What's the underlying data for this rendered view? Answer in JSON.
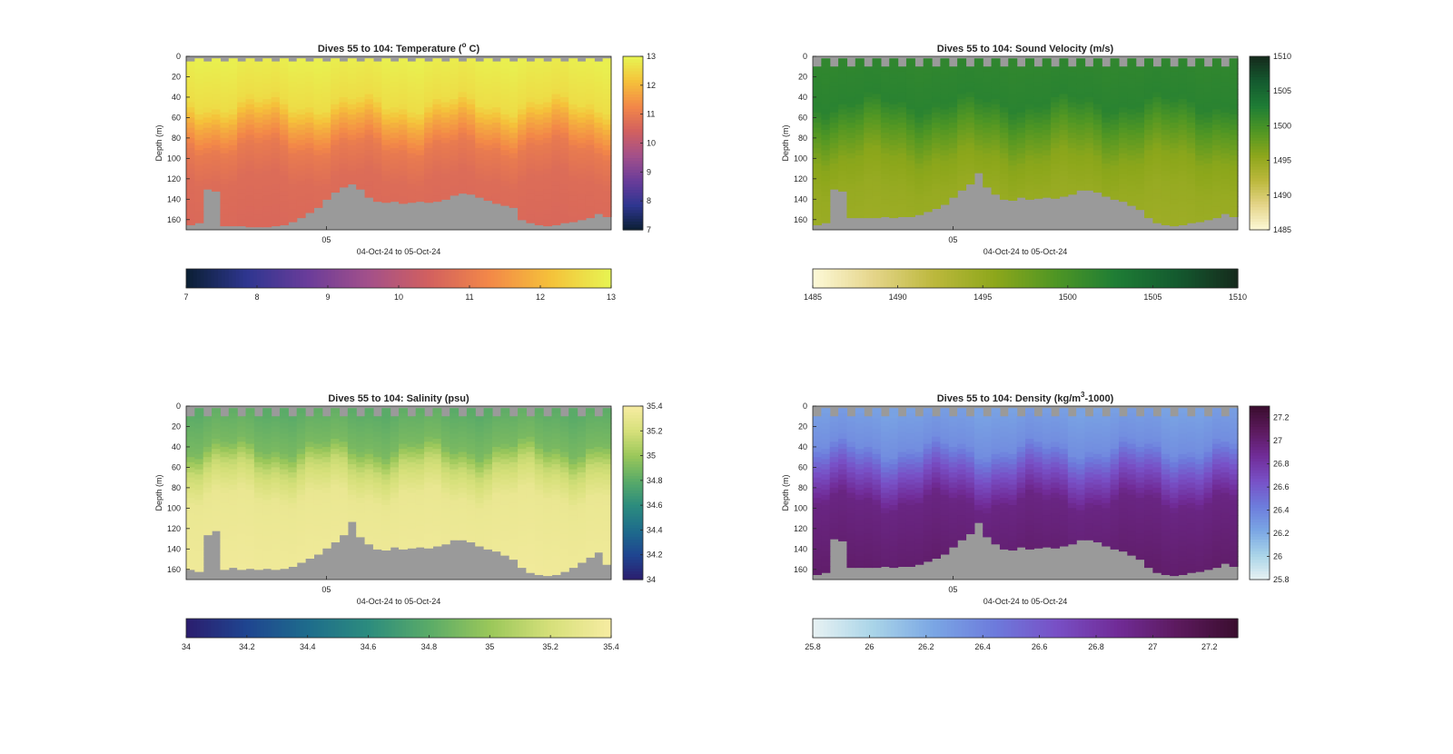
{
  "colors": {
    "land": "#9a9a9a",
    "axis": "#262626",
    "background": "#ffffff"
  },
  "chart_data": [
    {
      "type": "heatmap",
      "id": "temperature",
      "title": "Dives 55 to 104: Temperature (°C)",
      "title_parts": [
        "Dives 55 to 104: Temperature (",
        "o",
        " C)"
      ],
      "ylabel": "Depth (m)",
      "xlabel": "04-Oct-24 to 05-Oct-24",
      "x_tick_labels": [
        "05"
      ],
      "x_tick_dive": 16.5,
      "ylim": [
        170,
        0
      ],
      "y_ticks": [
        0,
        20,
        40,
        60,
        80,
        100,
        120,
        140,
        160
      ],
      "dives": 50,
      "colorbar_range": [
        7,
        13
      ],
      "colorbar_ticks": [
        7,
        8,
        9,
        10,
        11,
        12,
        13
      ],
      "side_colorbar_ticks": [
        7,
        8,
        9,
        10,
        11,
        12,
        13
      ],
      "colormap": [
        "#0b1f33",
        "#2e3690",
        "#6a3c9a",
        "#a3508a",
        "#d2605f",
        "#f38848",
        "#f5c13a",
        "#e7f552"
      ],
      "surface_gap_m": 5,
      "layers": [
        {
          "depth": 0,
          "value": 12.9
        },
        {
          "depth": 45,
          "value": 12.6
        },
        {
          "depth": 65,
          "value": 11.8
        },
        {
          "depth": 90,
          "value": 11.0
        },
        {
          "depth": 120,
          "value": 10.7
        },
        {
          "depth": 170,
          "value": 10.6
        }
      ],
      "bottom_depth_m": [
        165,
        163,
        130,
        132,
        166,
        166,
        166,
        167,
        167,
        167,
        166,
        165,
        162,
        158,
        153,
        148,
        140,
        133,
        128,
        125,
        130,
        138,
        142,
        143,
        142,
        144,
        143,
        142,
        143,
        142,
        140,
        136,
        134,
        135,
        138,
        141,
        144,
        146,
        148,
        160,
        163,
        165,
        166,
        165,
        163,
        162,
        160,
        158,
        154,
        157
      ]
    },
    {
      "type": "heatmap",
      "id": "sound_velocity",
      "title": "Dives 55 to 104: Sound Velocity (m/s)",
      "title_parts": [
        "Dives 55 to 104: Sound Velocity (m/s)"
      ],
      "ylabel": "Depth (m)",
      "xlabel": "04-Oct-24 to 05-Oct-24",
      "x_tick_labels": [
        "05"
      ],
      "x_tick_dive": 16.5,
      "ylim": [
        170,
        0
      ],
      "y_ticks": [
        0,
        20,
        40,
        60,
        80,
        100,
        120,
        140,
        160
      ],
      "dives": 50,
      "colorbar_range": [
        1485,
        1510
      ],
      "colorbar_ticks": [
        1485,
        1490,
        1495,
        1500,
        1505,
        1510
      ],
      "side_colorbar_ticks": [
        1485,
        1490,
        1495,
        1500,
        1505,
        1510
      ],
      "colormap": [
        "#fdf9d8",
        "#e5d58a",
        "#bcb83c",
        "#8da71b",
        "#4f9624",
        "#1e7d35",
        "#145a2f",
        "#152a1c"
      ],
      "surface_gap_m": 10,
      "layers": [
        {
          "depth": 0,
          "value": 1501.5
        },
        {
          "depth": 45,
          "value": 1502.0
        },
        {
          "depth": 70,
          "value": 1499.0
        },
        {
          "depth": 100,
          "value": 1496.0
        },
        {
          "depth": 130,
          "value": 1495.0
        },
        {
          "depth": 170,
          "value": 1494.5
        }
      ],
      "bottom_depth_m": [
        165,
        163,
        130,
        132,
        158,
        158,
        158,
        158,
        157,
        158,
        157,
        157,
        155,
        152,
        149,
        145,
        138,
        131,
        125,
        114,
        128,
        135,
        140,
        141,
        138,
        140,
        139,
        138,
        139,
        137,
        135,
        131,
        131,
        133,
        137,
        140,
        142,
        146,
        150,
        158,
        163,
        165,
        166,
        165,
        163,
        162,
        160,
        158,
        154,
        157
      ]
    },
    {
      "type": "heatmap",
      "id": "salinity",
      "title": "Dives 55 to 104: Salinity (psu)",
      "title_parts": [
        "Dives 55 to 104: Salinity (psu)"
      ],
      "ylabel": "Depth (m)",
      "xlabel": "04-Oct-24 to 05-Oct-24",
      "x_tick_labels": [
        "05"
      ],
      "x_tick_dive": 16.5,
      "ylim": [
        170,
        0
      ],
      "y_ticks": [
        0,
        20,
        40,
        60,
        80,
        100,
        120,
        140,
        160
      ],
      "dives": 50,
      "colorbar_range": [
        34,
        35.4
      ],
      "colorbar_ticks": [
        34,
        34.2,
        34.4,
        34.6,
        34.8,
        35,
        35.2,
        35.4
      ],
      "side_colorbar_ticks": [
        34,
        34.2,
        34.4,
        34.6,
        34.8,
        35,
        35.2,
        35.4
      ],
      "colormap": [
        "#2b1d6e",
        "#1f4590",
        "#1e6c8c",
        "#2c8c7e",
        "#5aab68",
        "#9ac75a",
        "#d6e07a",
        "#f7eca2"
      ],
      "surface_gap_m": 10,
      "layers": [
        {
          "depth": 0,
          "value": 34.8
        },
        {
          "depth": 40,
          "value": 34.9
        },
        {
          "depth": 60,
          "value": 35.15
        },
        {
          "depth": 90,
          "value": 35.32
        },
        {
          "depth": 170,
          "value": 35.36
        }
      ],
      "bottom_depth_m": [
        160,
        162,
        126,
        122,
        160,
        158,
        160,
        159,
        160,
        159,
        160,
        159,
        157,
        153,
        149,
        145,
        139,
        133,
        126,
        113,
        128,
        135,
        140,
        141,
        138,
        140,
        139,
        138,
        139,
        137,
        135,
        131,
        131,
        133,
        137,
        140,
        142,
        146,
        150,
        158,
        163,
        165,
        166,
        165,
        162,
        158,
        153,
        148,
        143,
        155
      ]
    },
    {
      "type": "heatmap",
      "id": "density",
      "title": "Dives 55 to 104: Density (kg/m³-1000)",
      "title_parts": [
        "Dives 55 to 104: Density (kg/m",
        "3",
        "-1000)"
      ],
      "ylabel": "Depth (m)",
      "xlabel": "04-Oct-24 to 05-Oct-24",
      "x_tick_labels": [
        "05"
      ],
      "x_tick_dive": 16.5,
      "ylim": [
        170,
        0
      ],
      "y_ticks": [
        0,
        20,
        40,
        60,
        80,
        100,
        120,
        140,
        160
      ],
      "dives": 50,
      "colorbar_range": [
        25.8,
        27.3
      ],
      "colorbar_ticks": [
        25.8,
        26,
        26.2,
        26.4,
        26.6,
        26.8,
        27,
        27.2
      ],
      "side_colorbar_ticks": [
        25.8,
        26,
        26.2,
        26.4,
        26.6,
        26.8,
        27,
        27.2
      ],
      "colormap": [
        "#e8f2f3",
        "#a9d4e8",
        "#7aa6e4",
        "#6d7bdc",
        "#7850c6",
        "#712c98",
        "#5c1a5e",
        "#3a0d2e"
      ],
      "surface_gap_m": 10,
      "layers": [
        {
          "depth": 0,
          "value": 26.25
        },
        {
          "depth": 40,
          "value": 26.35
        },
        {
          "depth": 65,
          "value": 26.65
        },
        {
          "depth": 95,
          "value": 26.95
        },
        {
          "depth": 170,
          "value": 27.05
        }
      ],
      "bottom_depth_m": [
        165,
        163,
        130,
        132,
        158,
        158,
        158,
        158,
        157,
        158,
        157,
        157,
        155,
        152,
        149,
        145,
        138,
        131,
        125,
        114,
        128,
        135,
        140,
        141,
        138,
        140,
        139,
        138,
        139,
        137,
        135,
        131,
        131,
        133,
        137,
        140,
        142,
        146,
        150,
        158,
        163,
        165,
        166,
        165,
        163,
        162,
        160,
        158,
        154,
        157
      ]
    }
  ]
}
